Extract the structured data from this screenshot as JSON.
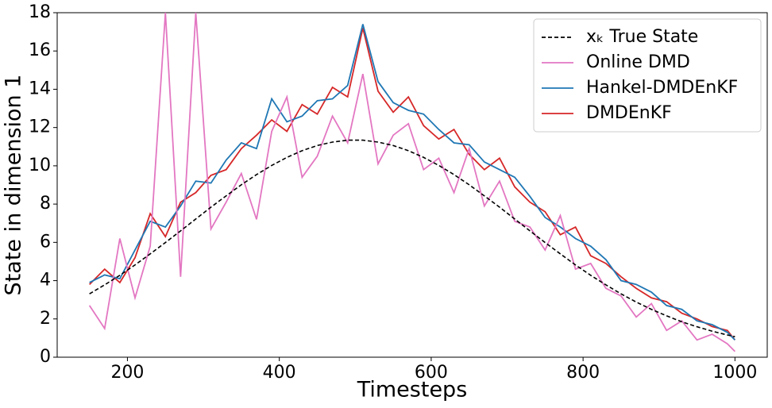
{
  "chart_data": {
    "type": "line",
    "x_label": "Timesteps",
    "y_label": "State in dimension 1",
    "x": [
      150,
      170,
      190,
      210,
      230,
      250,
      270,
      290,
      310,
      330,
      350,
      370,
      390,
      410,
      430,
      450,
      470,
      490,
      510,
      530,
      550,
      570,
      590,
      610,
      630,
      650,
      670,
      690,
      710,
      730,
      750,
      770,
      790,
      810,
      830,
      850,
      870,
      890,
      910,
      930,
      950,
      970,
      990,
      1000
    ],
    "series": [
      {
        "name": "xₖ True State",
        "color": "#000000",
        "dash": true,
        "values": [
          3.31,
          3.78,
          4.28,
          4.82,
          5.4,
          5.99,
          6.6,
          7.22,
          7.84,
          8.43,
          9.01,
          9.54,
          10.02,
          10.44,
          10.79,
          11.06,
          11.24,
          11.34,
          11.34,
          11.24,
          11.06,
          10.79,
          10.44,
          10.02,
          9.54,
          9.01,
          8.43,
          7.84,
          7.22,
          6.6,
          5.99,
          5.4,
          4.82,
          4.28,
          3.78,
          3.31,
          2.88,
          2.5,
          2.16,
          1.85,
          1.59,
          1.36,
          1.16,
          1.07
        ]
      },
      {
        "name": "Online DMD",
        "color": "#e377c2",
        "values": [
          2.7,
          1.5,
          6.2,
          3.1,
          5.8,
          18,
          4.2,
          18,
          6.7,
          8.1,
          9.6,
          7.2,
          11.8,
          13.6,
          9.4,
          10.5,
          12.6,
          11.2,
          14.8,
          10.1,
          11.6,
          12.2,
          9.8,
          10.4,
          8.6,
          10.9,
          7.9,
          9.2,
          7.1,
          6.8,
          5.6,
          7.4,
          4.6,
          4.9,
          3.6,
          3.2,
          2.1,
          2.8,
          1.4,
          1.9,
          0.9,
          1.2,
          0.7,
          0.3
        ]
      },
      {
        "name": "Hankel-DMDEnKF",
        "color": "#1f77b4",
        "values": [
          3.9,
          4.3,
          4.1,
          5.6,
          7.1,
          6.8,
          7.9,
          9.2,
          9.1,
          10.3,
          11.2,
          10.9,
          13.5,
          12.3,
          12.6,
          13.4,
          13.5,
          14.2,
          17.4,
          14.4,
          13.3,
          12.9,
          12.7,
          11.9,
          11.2,
          11.1,
          10.2,
          9.8,
          9.4,
          8.4,
          7.3,
          6.8,
          6.2,
          5.8,
          5.1,
          4.0,
          3.8,
          3.4,
          2.7,
          2.5,
          1.9,
          1.7,
          1.3,
          0.9
        ]
      },
      {
        "name": "DMDEnKF",
        "color": "#d62728",
        "values": [
          3.8,
          4.6,
          3.9,
          5.2,
          7.5,
          6.3,
          8.1,
          8.6,
          9.5,
          9.8,
          10.9,
          11.6,
          12.4,
          11.8,
          13.2,
          12.7,
          14.1,
          13.6,
          17.2,
          13.9,
          12.8,
          13.6,
          12.1,
          11.4,
          11.9,
          10.6,
          9.8,
          10.4,
          8.9,
          8.1,
          7.6,
          6.4,
          6.8,
          5.3,
          4.9,
          4.2,
          3.6,
          3.1,
          2.9,
          2.3,
          2.0,
          1.6,
          1.4,
          0.9
        ]
      }
    ],
    "xlim": [
      107.5,
      1042.5
    ],
    "xticks": [
      200,
      400,
      600,
      800,
      1000
    ],
    "ylim": [
      0,
      18
    ],
    "yticks": [
      0,
      2,
      4,
      6,
      8,
      10,
      12,
      14,
      16,
      18
    ],
    "legend": "upper right"
  }
}
